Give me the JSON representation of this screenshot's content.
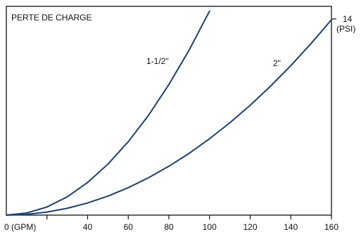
{
  "chart_data": {
    "type": "line",
    "title": "PERTE DE CHARGE",
    "xlabel": "",
    "ylabel": "",
    "x_ticks": [
      {
        "value": 0,
        "label": "0 (GPM)"
      },
      {
        "value": 20,
        "label": ""
      },
      {
        "value": 40,
        "label": "40"
      },
      {
        "value": 60,
        "label": "60"
      },
      {
        "value": 80,
        "label": "80"
      },
      {
        "value": 100,
        "label": "100"
      },
      {
        "value": 120,
        "label": "120"
      },
      {
        "value": 140,
        "label": "140"
      },
      {
        "value": 160,
        "label": "160"
      }
    ],
    "y_ticks": [
      {
        "value": 14,
        "label": "14",
        "unit": "(PSI)"
      }
    ],
    "xlim": [
      0,
      160
    ],
    "ylim": [
      0,
      14.9
    ],
    "grid": false,
    "legend": "none",
    "series": [
      {
        "name": "1-1/2\"",
        "color": "#1a3f7a",
        "x": [
          0,
          10,
          20,
          30,
          40,
          50,
          60,
          70,
          80,
          90,
          100
        ],
        "y": [
          0,
          0.15,
          0.58,
          1.31,
          2.33,
          3.64,
          5.24,
          7.13,
          9.32,
          11.79,
          14.56
        ]
      },
      {
        "name": "2\"",
        "color": "#1a3f7a",
        "x": [
          0,
          10,
          20,
          30,
          40,
          50,
          60,
          70,
          80,
          90,
          100,
          110,
          120,
          130,
          140,
          150,
          160
        ],
        "y": [
          0,
          0.05,
          0.22,
          0.49,
          0.87,
          1.36,
          1.96,
          2.67,
          3.49,
          4.41,
          5.45,
          6.59,
          7.84,
          9.2,
          10.67,
          12.25,
          13.94
        ]
      }
    ]
  }
}
